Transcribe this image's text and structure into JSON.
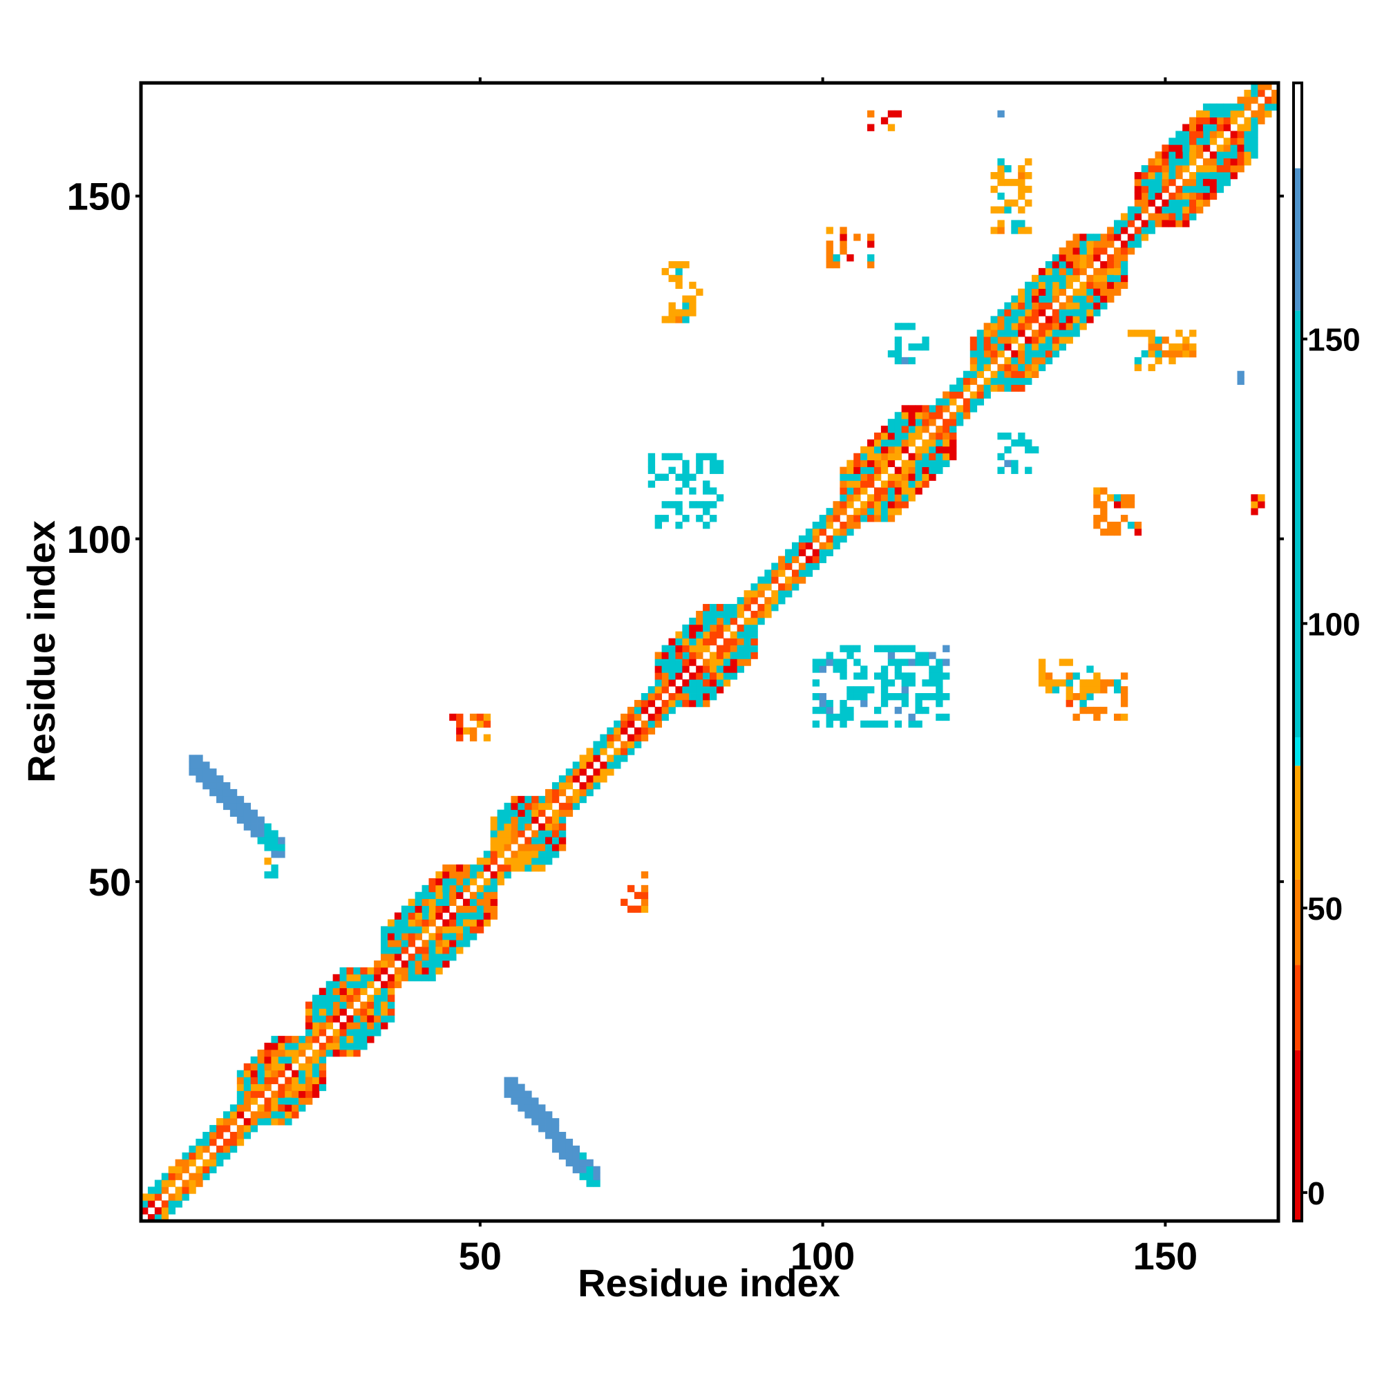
{
  "chart_data": {
    "type": "heatmap",
    "title": "",
    "xlabel": "Residue index",
    "ylabel": "Residue index",
    "xlim": [
      1,
      166
    ],
    "ylim": [
      1,
      166
    ],
    "x_ticks": [
      "50",
      "100",
      "150"
    ],
    "y_ticks": [
      "50",
      "100",
      "150"
    ],
    "colorbar": {
      "ticks": [
        "0",
        "50",
        "100",
        "150"
      ],
      "range": [
        -5,
        195
      ],
      "bands": [
        {
          "from": -5,
          "to": 25,
          "color": "#e60000"
        },
        {
          "from": 25,
          "to": 40,
          "color": "#ff4500"
        },
        {
          "from": 40,
          "to": 55,
          "color": "#ff7f00"
        },
        {
          "from": 55,
          "to": 75,
          "color": "#ffa500"
        },
        {
          "from": 75,
          "to": 80,
          "color": "#00e5ee"
        },
        {
          "from": 80,
          "to": 155,
          "color": "#00c5cd"
        },
        {
          "from": 155,
          "to": 180,
          "color": "#4f94cd"
        },
        {
          "from": 180,
          "to": 195,
          "color": "#ffffff"
        }
      ]
    },
    "diagonal": {
      "from": 1,
      "to": 166
    },
    "secondary_structure_segments": [
      {
        "start": 15,
        "end": 25
      },
      {
        "start": 25,
        "end": 35
      },
      {
        "start": 36,
        "end": 50
      },
      {
        "start": 52,
        "end": 60
      },
      {
        "start": 76,
        "end": 88
      },
      {
        "start": 103,
        "end": 117
      },
      {
        "start": 122,
        "end": 142
      },
      {
        "start": 146,
        "end": 161
      }
    ],
    "off_diagonal_regions": [
      {
        "x": [
          8,
          20
        ],
        "y": [
          55,
          67
        ],
        "value": 160,
        "shape": "anti-diagonal"
      },
      {
        "x": [
          54,
          66
        ],
        "y": [
          7,
          20
        ],
        "value": 160,
        "shape": "anti-diagonal"
      },
      {
        "x": [
          101,
          107
        ],
        "y": [
          140,
          145
        ],
        "value": 40
      },
      {
        "x": [
          140,
          146
        ],
        "y": [
          101,
          107
        ],
        "value": 40
      },
      {
        "x": [
          77,
          82
        ],
        "y": [
          132,
          140
        ],
        "value": 60
      },
      {
        "x": [
          132,
          140
        ],
        "y": [
          77,
          82
        ],
        "value": 60
      },
      {
        "x": [
          110,
          115
        ],
        "y": [
          126,
          131
        ],
        "value": 120
      },
      {
        "x": [
          126,
          131
        ],
        "y": [
          110,
          115
        ],
        "value": 120
      },
      {
        "x": [
          125,
          130
        ],
        "y": [
          145,
          155
        ],
        "value": 70
      },
      {
        "x": [
          145,
          155
        ],
        "y": [
          125,
          130
        ],
        "value": 70
      },
      {
        "x": [
          46,
          51
        ],
        "y": [
          71,
          74
        ],
        "value": 30
      },
      {
        "x": [
          71,
          74
        ],
        "y": [
          46,
          51
        ],
        "value": 30
      },
      {
        "x": [
          19,
          20
        ],
        "y": [
          48,
          53
        ],
        "value": 90
      },
      {
        "x": [
          107,
          111
        ],
        "y": [
          160,
          162
        ],
        "value": 20
      },
      {
        "x": [
          162,
          164
        ],
        "y": [
          102,
          106
        ],
        "value": 20
      },
      {
        "x": [
          75,
          85
        ],
        "y": [
          102,
          112
        ],
        "value": 110
      },
      {
        "x": [
          136,
          144
        ],
        "y": [
          74,
          80
        ],
        "value": 50
      },
      {
        "x": [
          99,
          118
        ],
        "y": [
          73,
          84
        ],
        "value": 130
      },
      {
        "x": [
          161,
          164
        ],
        "y": [
          123,
          124
        ],
        "value": 165
      },
      {
        "x": [
          125,
          126
        ],
        "y": [
          159,
          162
        ],
        "value": 165
      }
    ]
  }
}
